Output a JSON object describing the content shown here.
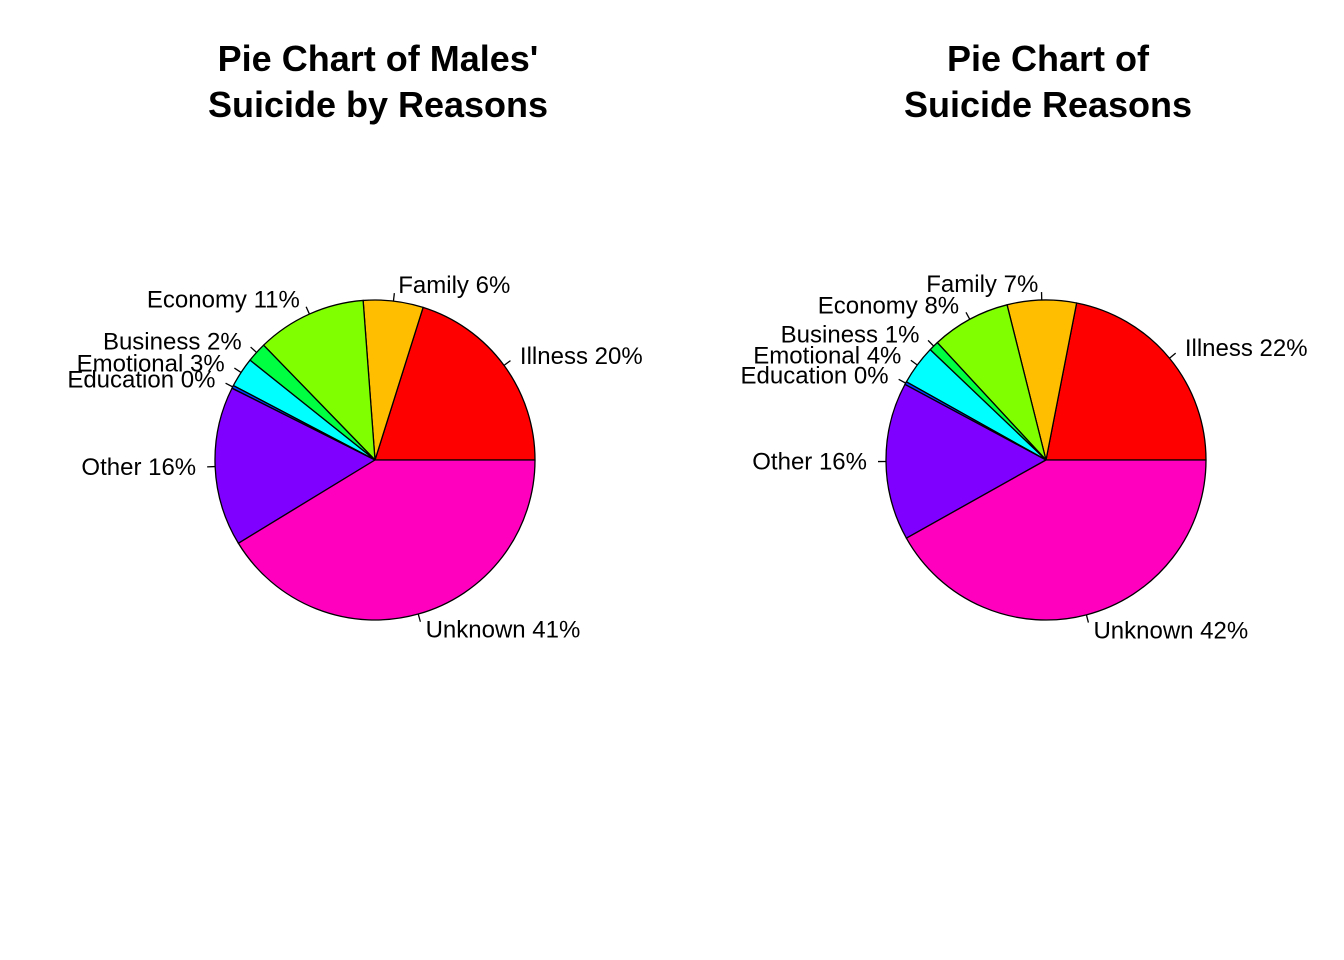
{
  "chart_data": [
    {
      "type": "pie",
      "title_lines": [
        "Pie Chart of Males'",
        "Suicide by Reasons"
      ],
      "start": "counterclockwise from 3 o'clock",
      "slices": [
        {
          "category": "Illness",
          "value": 20,
          "label": "Illness 20%",
          "color": "#FF0000"
        },
        {
          "category": "Family",
          "value": 6,
          "label": "Family 6%",
          "color": "#FFBF00"
        },
        {
          "category": "Economy",
          "value": 11,
          "label": "Economy 11%",
          "color": "#80FF00"
        },
        {
          "category": "Business",
          "value": 2,
          "label": "Business 2%",
          "color": "#00FF40"
        },
        {
          "category": "Emotional",
          "value": 3,
          "label": "Emotional 3%",
          "color": "#00FFFF"
        },
        {
          "category": "Education",
          "value": 0.3,
          "label": "Education 0%",
          "color": "#0040FF"
        },
        {
          "category": "Other",
          "value": 16,
          "label": "Other 16%",
          "color": "#8000FF"
        },
        {
          "category": "Unknown",
          "value": 41,
          "label": "Unknown 41%",
          "color": "#FF00BF"
        }
      ]
    },
    {
      "type": "pie",
      "title_lines": [
        "Pie Chart of",
        "Suicide Reasons"
      ],
      "start": "counterclockwise from 3 o'clock",
      "slices": [
        {
          "category": "Illness",
          "value": 22,
          "label": "Illness 22%",
          "color": "#FF0000"
        },
        {
          "category": "Family",
          "value": 7,
          "label": "Family 7%",
          "color": "#FFBF00"
        },
        {
          "category": "Economy",
          "value": 8,
          "label": "Economy 8%",
          "color": "#80FF00"
        },
        {
          "category": "Business",
          "value": 1,
          "label": "Business 1%",
          "color": "#00FF40"
        },
        {
          "category": "Emotional",
          "value": 4,
          "label": "Emotional 4%",
          "color": "#00FFFF"
        },
        {
          "category": "Education",
          "value": 0.3,
          "label": "Education 0%",
          "color": "#0040FF"
        },
        {
          "category": "Other",
          "value": 16,
          "label": "Other 16%",
          "color": "#8000FF"
        },
        {
          "category": "Unknown",
          "value": 42,
          "label": "Unknown 42%",
          "color": "#FF00BF"
        }
      ]
    }
  ]
}
